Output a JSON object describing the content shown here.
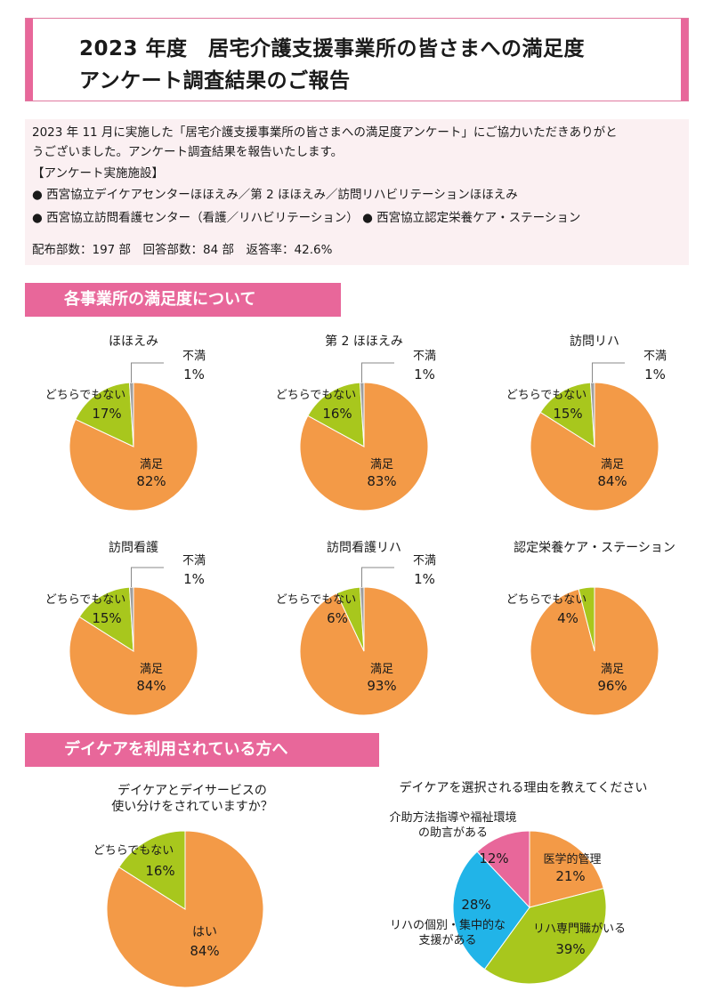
{
  "header": {
    "title_line1": "2023 年度　居宅介護支援事業所の皆さまへの満足度",
    "title_line2": "アンケート調査結果のご報告"
  },
  "intro": {
    "paragraph_line1": "2023 年 11 月に実施した「居宅介護支援事業所の皆さまへの満足度アンケート」にご協力いただきありがと",
    "paragraph_line2": "うございました。アンケート調査結果を報告いたします。",
    "facilities_heading": "【アンケート実施施設】",
    "facility_line1": "● 西宮協立デイケアセンターほほえみ／第 2 ほほえみ／訪問リハビリテーションほほえみ",
    "facility_line2": "● 西宮協立訪問看護センター（看護／リハビリテーション）  ● 西宮協立認定栄養ケア・ステーション",
    "stats": "配布部数：197 部　回答部数：84 部　返答率：42.6%"
  },
  "sections": {
    "satisfaction": "各事業所の満足度について",
    "daycare": "デイケアを利用されている方へ"
  },
  "colors": {
    "satisfied": "#f39a47",
    "neutral": "#a8c71d",
    "unsatisfied": "#9e9e9e",
    "blue": "#21b4e8",
    "pink": "#e8679a",
    "accent": "#e8679a"
  },
  "chart_data": [
    {
      "type": "pie",
      "title": "ほほえみ",
      "slices": [
        {
          "label": "満足",
          "value": 82
        },
        {
          "label": "どちらでもない",
          "value": 17
        },
        {
          "label": "不満",
          "value": 1
        }
      ]
    },
    {
      "type": "pie",
      "title": "第 2 ほほえみ",
      "slices": [
        {
          "label": "満足",
          "value": 83
        },
        {
          "label": "どちらでもない",
          "value": 16
        },
        {
          "label": "不満",
          "value": 1
        }
      ]
    },
    {
      "type": "pie",
      "title": "訪問リハ",
      "slices": [
        {
          "label": "満足",
          "value": 84
        },
        {
          "label": "どちらでもない",
          "value": 15
        },
        {
          "label": "不満",
          "value": 1
        }
      ]
    },
    {
      "type": "pie",
      "title": "訪問看護",
      "slices": [
        {
          "label": "満足",
          "value": 84
        },
        {
          "label": "どちらでもない",
          "value": 15
        },
        {
          "label": "不満",
          "value": 1
        }
      ]
    },
    {
      "type": "pie",
      "title": "訪問看護リハ",
      "slices": [
        {
          "label": "満足",
          "value": 93
        },
        {
          "label": "どちらでもない",
          "value": 6
        },
        {
          "label": "不満",
          "value": 1
        }
      ]
    },
    {
      "type": "pie",
      "title": "認定栄養ケア・ステーション",
      "slices": [
        {
          "label": "満足",
          "value": 96
        },
        {
          "label": "どちらでもない",
          "value": 4
        }
      ]
    },
    {
      "type": "pie",
      "title": [
        "デイケアとデイサービスの",
        "使い分けをされていますか？"
      ],
      "slices": [
        {
          "label": "はい",
          "value": 84
        },
        {
          "label": "どちらでもない",
          "value": 16
        }
      ]
    },
    {
      "type": "pie",
      "title": "デイケアを選択される理由を教えてください",
      "slices": [
        {
          "label": "医学的管理",
          "value": 21
        },
        {
          "label": "リハ専門職がいる",
          "value": 39
        },
        {
          "label": [
            "リハの個別・集中的な",
            "支援がある"
          ],
          "value": 28
        },
        {
          "label": [
            "介助方法指導や福祉環境",
            "の助言がある"
          ],
          "value": 12
        }
      ]
    }
  ]
}
